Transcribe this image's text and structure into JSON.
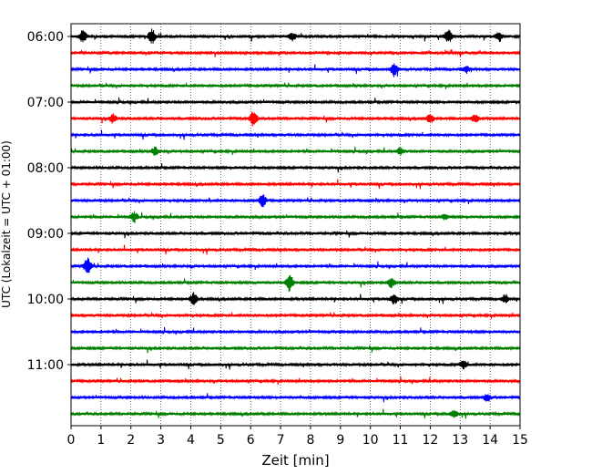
{
  "chart_data": {
    "type": "line",
    "title": "",
    "xlabel": "Zeit  [min]",
    "ylabel": "UTC (Lokalzeit = UTC + 01:00)",
    "xlim": [
      0,
      15
    ],
    "x_ticks": [
      "0",
      "1",
      "2",
      "3",
      "4",
      "5",
      "6",
      "7",
      "8",
      "9",
      "10",
      "11",
      "12",
      "13",
      "14",
      "15"
    ],
    "y_ticks": [
      "06:00",
      "07:00",
      "08:00",
      "09:00",
      "10:00",
      "11:00"
    ],
    "grid": "vertical dotted at each minute",
    "trace_interval_minutes": 15,
    "trace_count": 24,
    "trace_colors": [
      "#000000",
      "#ff0000",
      "#0000ff",
      "#008000"
    ],
    "events": [
      {
        "row": 0,
        "minute": 0.4,
        "amp": 1.0
      },
      {
        "row": 0,
        "minute": 2.7,
        "amp": 1.1
      },
      {
        "row": 0,
        "minute": 12.6,
        "amp": 1.0
      },
      {
        "row": 0,
        "minute": 14.3,
        "amp": 0.7
      },
      {
        "row": 0,
        "minute": 7.4,
        "amp": 0.6
      },
      {
        "row": 2,
        "minute": 10.8,
        "amp": 0.9
      },
      {
        "row": 2,
        "minute": 13.2,
        "amp": 0.5
      },
      {
        "row": 5,
        "minute": 1.4,
        "amp": 0.7
      },
      {
        "row": 5,
        "minute": 6.1,
        "amp": 1.2
      },
      {
        "row": 5,
        "minute": 12.0,
        "amp": 0.7
      },
      {
        "row": 5,
        "minute": 13.5,
        "amp": 0.6
      },
      {
        "row": 7,
        "minute": 2.8,
        "amp": 0.6
      },
      {
        "row": 7,
        "minute": 11.0,
        "amp": 0.5
      },
      {
        "row": 10,
        "minute": 6.4,
        "amp": 1.0
      },
      {
        "row": 11,
        "minute": 2.1,
        "amp": 0.8
      },
      {
        "row": 11,
        "minute": 12.5,
        "amp": 0.4
      },
      {
        "row": 14,
        "minute": 0.55,
        "amp": 1.3
      },
      {
        "row": 15,
        "minute": 7.3,
        "amp": 1.3
      },
      {
        "row": 15,
        "minute": 10.7,
        "amp": 0.8
      },
      {
        "row": 16,
        "minute": 4.1,
        "amp": 0.9
      },
      {
        "row": 16,
        "minute": 10.8,
        "amp": 0.8
      },
      {
        "row": 16,
        "minute": 14.5,
        "amp": 0.6
      },
      {
        "row": 20,
        "minute": 13.1,
        "amp": 0.6
      },
      {
        "row": 22,
        "minute": 13.9,
        "amp": 0.5
      },
      {
        "row": 23,
        "minute": 12.8,
        "amp": 0.5
      }
    ]
  }
}
